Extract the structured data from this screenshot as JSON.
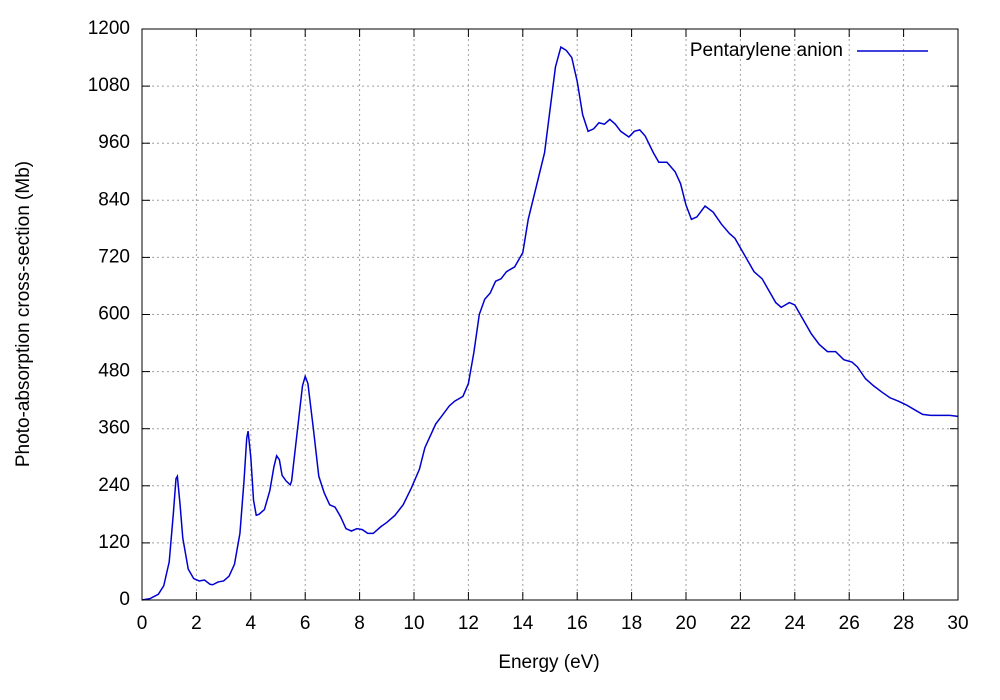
{
  "chart_data": {
    "type": "line",
    "xlabel": "Energy (eV)",
    "ylabel": "Photo-absorption cross-section (Mb)",
    "xlim": [
      0,
      30
    ],
    "xticks": [
      0,
      2,
      4,
      6,
      8,
      10,
      12,
      14,
      16,
      18,
      20,
      22,
      24,
      26,
      28,
      30
    ],
    "ylim": [
      0,
      1200
    ],
    "yticks": [
      0,
      120,
      240,
      360,
      480,
      600,
      720,
      840,
      960,
      1080,
      1200
    ],
    "grid": true,
    "legend": "upper right",
    "x": [
      0,
      0.3,
      0.6,
      0.8,
      1.0,
      1.15,
      1.25,
      1.3,
      1.4,
      1.5,
      1.7,
      1.9,
      2.1,
      2.3,
      2.5,
      2.6,
      2.8,
      3.0,
      3.2,
      3.4,
      3.6,
      3.75,
      3.85,
      3.9,
      4.0,
      4.1,
      4.2,
      4.3,
      4.5,
      4.7,
      4.85,
      4.95,
      5.05,
      5.15,
      5.3,
      5.45,
      5.5,
      5.7,
      5.9,
      6.0,
      6.1,
      6.3,
      6.5,
      6.7,
      6.9,
      7.1,
      7.3,
      7.5,
      7.7,
      7.9,
      8.1,
      8.3,
      8.5,
      8.8,
      9.0,
      9.3,
      9.6,
      9.9,
      10.2,
      10.4,
      10.6,
      10.8,
      11.0,
      11.3,
      11.5,
      11.8,
      12.0,
      12.2,
      12.4,
      12.6,
      12.8,
      13.0,
      13.2,
      13.4,
      13.7,
      14.0,
      14.2,
      14.5,
      14.8,
      15.0,
      15.2,
      15.4,
      15.6,
      15.8,
      16.0,
      16.2,
      16.4,
      16.6,
      16.8,
      17.0,
      17.2,
      17.4,
      17.6,
      17.9,
      18.1,
      18.3,
      18.5,
      18.8,
      19.0,
      19.3,
      19.6,
      19.8,
      20.0,
      20.2,
      20.4,
      20.7,
      21.0,
      21.3,
      21.6,
      21.8,
      22.0,
      22.3,
      22.5,
      22.8,
      23.0,
      23.3,
      23.5,
      23.8,
      24.0,
      24.3,
      24.6,
      24.9,
      25.2,
      25.5,
      25.8,
      26.1,
      26.3,
      26.6,
      26.9,
      27.2,
      27.5,
      27.8,
      28.1,
      28.4,
      28.7,
      29.0,
      29.3,
      29.7,
      30.0
    ],
    "series": [
      {
        "name": "Pentarylene anion",
        "color": "#0000d0",
        "values": [
          0,
          3,
          12,
          30,
          80,
          180,
          255,
          260,
          200,
          130,
          65,
          45,
          40,
          42,
          33,
          32,
          38,
          40,
          50,
          75,
          140,
          250,
          340,
          355,
          300,
          210,
          178,
          180,
          190,
          230,
          280,
          303,
          295,
          262,
          250,
          242,
          250,
          350,
          450,
          470,
          455,
          360,
          260,
          225,
          200,
          195,
          175,
          150,
          145,
          150,
          148,
          140,
          140,
          155,
          163,
          178,
          200,
          235,
          275,
          320,
          345,
          370,
          385,
          408,
          418,
          428,
          455,
          520,
          600,
          632,
          645,
          670,
          675,
          690,
          700,
          730,
          800,
          870,
          940,
          1030,
          1120,
          1162,
          1155,
          1140,
          1090,
          1020,
          985,
          990,
          1003,
          1000,
          1010,
          1000,
          985,
          973,
          985,
          988,
          975,
          940,
          920,
          920,
          900,
          875,
          830,
          800,
          805,
          828,
          815,
          790,
          770,
          760,
          740,
          710,
          690,
          675,
          655,
          625,
          615,
          625,
          620,
          590,
          560,
          537,
          522,
          522,
          505,
          500,
          490,
          465,
          450,
          437,
          425,
          418,
          410,
          400,
          390,
          388,
          388,
          388,
          386
        ]
      }
    ]
  }
}
